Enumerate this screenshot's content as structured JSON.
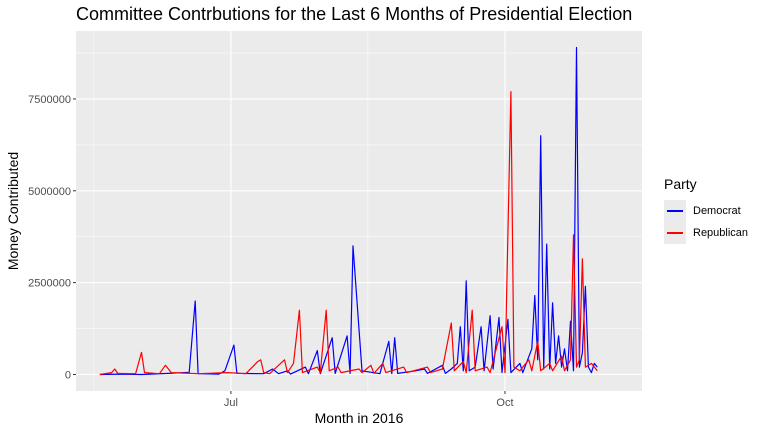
{
  "chart_data": {
    "type": "line",
    "title": "Committee Contrbutions for the Last 6 Months of Presidential Election",
    "xlabel": "Month in 2016",
    "ylabel": "Money Contributed",
    "x_tick_labels": [
      {
        "date": "2016-07-01",
        "label": "Jul"
      },
      {
        "date": "2016-10-01",
        "label": "Oct"
      }
    ],
    "y_tick_labels": [
      {
        "value": 0,
        "label": "0"
      },
      {
        "value": 2500000,
        "label": "2500000"
      },
      {
        "value": 5000000,
        "label": "5000000"
      },
      {
        "value": 7500000,
        "label": "7500000"
      }
    ],
    "xlim": [
      "2016-05-10",
      "2016-11-16"
    ],
    "ylim": [
      -450000,
      9350000
    ],
    "grid": true,
    "legend": {
      "title": "Party",
      "position": "right"
    },
    "series": [
      {
        "name": "Democrat",
        "color": "#0000ff",
        "points": [
          [
            "2016-05-18",
            0
          ],
          [
            "2016-05-25",
            10000
          ],
          [
            "2016-06-01",
            0
          ],
          [
            "2016-06-10",
            30000
          ],
          [
            "2016-06-17",
            60000
          ],
          [
            "2016-06-19",
            2000000
          ],
          [
            "2016-06-20",
            20000
          ],
          [
            "2016-06-27",
            10000
          ],
          [
            "2016-06-29",
            100000
          ],
          [
            "2016-07-02",
            800000
          ],
          [
            "2016-07-03",
            30000
          ],
          [
            "2016-07-12",
            20000
          ],
          [
            "2016-07-15",
            150000
          ],
          [
            "2016-07-17",
            20000
          ],
          [
            "2016-07-20",
            100000
          ],
          [
            "2016-07-21",
            10000
          ],
          [
            "2016-07-26",
            200000
          ],
          [
            "2016-07-27",
            20000
          ],
          [
            "2016-07-30",
            650000
          ],
          [
            "2016-07-31",
            20000
          ],
          [
            "2016-08-04",
            1000000
          ],
          [
            "2016-08-05",
            30000
          ],
          [
            "2016-08-09",
            1050000
          ],
          [
            "2016-08-10",
            30000
          ],
          [
            "2016-08-11",
            3500000
          ],
          [
            "2016-08-14",
            100000
          ],
          [
            "2016-08-20",
            20000
          ],
          [
            "2016-08-23",
            900000
          ],
          [
            "2016-08-24",
            20000
          ],
          [
            "2016-08-25",
            1000000
          ],
          [
            "2016-08-26",
            30000
          ],
          [
            "2016-09-01",
            100000
          ],
          [
            "2016-09-04",
            150000
          ],
          [
            "2016-09-05",
            30000
          ],
          [
            "2016-09-10",
            250000
          ],
          [
            "2016-09-11",
            30000
          ],
          [
            "2016-09-13",
            150000
          ],
          [
            "2016-09-15",
            300000
          ],
          [
            "2016-09-16",
            1300000
          ],
          [
            "2016-09-17",
            100000
          ],
          [
            "2016-09-18",
            2550000
          ],
          [
            "2016-09-19",
            100000
          ],
          [
            "2016-09-21",
            200000
          ],
          [
            "2016-09-23",
            1300000
          ],
          [
            "2016-09-24",
            100000
          ],
          [
            "2016-09-26",
            1600000
          ],
          [
            "2016-09-27",
            150000
          ],
          [
            "2016-09-29",
            1550000
          ],
          [
            "2016-09-30",
            50000
          ],
          [
            "2016-10-02",
            1500000
          ],
          [
            "2016-10-03",
            50000
          ],
          [
            "2016-10-06",
            300000
          ],
          [
            "2016-10-07",
            50000
          ],
          [
            "2016-10-10",
            700000
          ],
          [
            "2016-10-11",
            2150000
          ],
          [
            "2016-10-12",
            400000
          ],
          [
            "2016-10-13",
            6500000
          ],
          [
            "2016-10-14",
            150000
          ],
          [
            "2016-10-15",
            3550000
          ],
          [
            "2016-10-16",
            150000
          ],
          [
            "2016-10-17",
            1950000
          ],
          [
            "2016-10-18",
            300000
          ],
          [
            "2016-10-19",
            1050000
          ],
          [
            "2016-10-20",
            200000
          ],
          [
            "2016-10-21",
            700000
          ],
          [
            "2016-10-22",
            100000
          ],
          [
            "2016-10-23",
            1450000
          ],
          [
            "2016-10-24",
            100000
          ],
          [
            "2016-10-25",
            8900000
          ],
          [
            "2016-10-26",
            200000
          ],
          [
            "2016-10-27",
            600000
          ],
          [
            "2016-10-28",
            2400000
          ],
          [
            "2016-10-29",
            200000
          ],
          [
            "2016-10-30",
            50000
          ],
          [
            "2016-10-31",
            300000
          ],
          [
            "2016-11-01",
            200000
          ]
        ]
      },
      {
        "name": "Republican",
        "color": "#ff0000",
        "points": [
          [
            "2016-05-18",
            0
          ],
          [
            "2016-05-22",
            50000
          ],
          [
            "2016-05-23",
            150000
          ],
          [
            "2016-05-24",
            30000
          ],
          [
            "2016-05-30",
            20000
          ],
          [
            "2016-06-01",
            600000
          ],
          [
            "2016-06-02",
            50000
          ],
          [
            "2016-06-07",
            20000
          ],
          [
            "2016-06-09",
            250000
          ],
          [
            "2016-06-11",
            50000
          ],
          [
            "2016-06-20",
            20000
          ],
          [
            "2016-06-30",
            50000
          ],
          [
            "2016-07-06",
            20000
          ],
          [
            "2016-07-10",
            350000
          ],
          [
            "2016-07-11",
            400000
          ],
          [
            "2016-07-12",
            50000
          ],
          [
            "2016-07-14",
            20000
          ],
          [
            "2016-07-19",
            400000
          ],
          [
            "2016-07-20",
            50000
          ],
          [
            "2016-07-22",
            300000
          ],
          [
            "2016-07-24",
            1750000
          ],
          [
            "2016-07-25",
            50000
          ],
          [
            "2016-07-30",
            200000
          ],
          [
            "2016-07-31",
            50000
          ],
          [
            "2016-08-02",
            1750000
          ],
          [
            "2016-08-03",
            100000
          ],
          [
            "2016-08-06",
            200000
          ],
          [
            "2016-08-07",
            50000
          ],
          [
            "2016-08-13",
            150000
          ],
          [
            "2016-08-14",
            50000
          ],
          [
            "2016-08-17",
            250000
          ],
          [
            "2016-08-18",
            30000
          ],
          [
            "2016-08-21",
            300000
          ],
          [
            "2016-08-22",
            50000
          ],
          [
            "2016-08-28",
            200000
          ],
          [
            "2016-08-29",
            50000
          ],
          [
            "2016-09-05",
            200000
          ],
          [
            "2016-09-06",
            50000
          ],
          [
            "2016-09-10",
            150000
          ],
          [
            "2016-09-13",
            1400000
          ],
          [
            "2016-09-14",
            100000
          ],
          [
            "2016-09-17",
            350000
          ],
          [
            "2016-09-18",
            50000
          ],
          [
            "2016-09-20",
            1750000
          ],
          [
            "2016-09-21",
            100000
          ],
          [
            "2016-09-25",
            200000
          ],
          [
            "2016-09-26",
            50000
          ],
          [
            "2016-09-30",
            1300000
          ],
          [
            "2016-10-01",
            50000
          ],
          [
            "2016-10-03",
            7700000
          ],
          [
            "2016-10-04",
            200000
          ],
          [
            "2016-10-06",
            100000
          ],
          [
            "2016-10-09",
            400000
          ],
          [
            "2016-10-10",
            100000
          ],
          [
            "2016-10-12",
            900000
          ],
          [
            "2016-10-13",
            100000
          ],
          [
            "2016-10-16",
            300000
          ],
          [
            "2016-10-17",
            100000
          ],
          [
            "2016-10-20",
            500000
          ],
          [
            "2016-10-21",
            100000
          ],
          [
            "2016-10-23",
            400000
          ],
          [
            "2016-10-24",
            3800000
          ],
          [
            "2016-10-25",
            200000
          ],
          [
            "2016-10-26",
            400000
          ],
          [
            "2016-10-27",
            3150000
          ],
          [
            "2016-10-28",
            200000
          ],
          [
            "2016-10-30",
            300000
          ],
          [
            "2016-11-01",
            100000
          ]
        ]
      }
    ]
  }
}
